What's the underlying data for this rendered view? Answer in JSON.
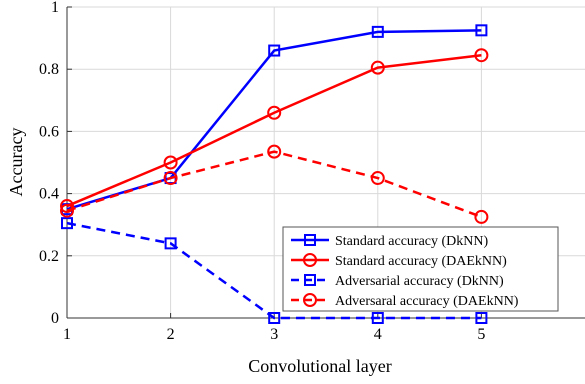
{
  "chart_data": {
    "type": "line",
    "xlabel": "Convolutional layer",
    "ylabel": "Accuracy",
    "x": [
      1,
      2,
      3,
      4,
      5
    ],
    "xlim": [
      1,
      6
    ],
    "ylim": [
      0,
      1
    ],
    "x_ticks": [
      "1",
      "2",
      "3",
      "4",
      "5"
    ],
    "y_ticks": [
      "0",
      "0.2",
      "0.4",
      "0.6",
      "0.8",
      "1"
    ],
    "grid": true,
    "legend_position": "bottom-right",
    "series": [
      {
        "name": "Standard accuracy (DkNN)",
        "values": [
          0.35,
          0.45,
          0.86,
          0.92,
          0.925
        ],
        "color": "#0000ff",
        "line": "solid",
        "marker": "square"
      },
      {
        "name": "Standard accuracy (DAEkNN)",
        "values": [
          0.36,
          0.5,
          0.66,
          0.805,
          0.845
        ],
        "color": "#ff0000",
        "line": "solid",
        "marker": "circle"
      },
      {
        "name": "Adversarial accuracy (DkNN)",
        "values": [
          0.305,
          0.24,
          0.0,
          0.0,
          0.0
        ],
        "color": "#0000ff",
        "line": "dashed",
        "marker": "square"
      },
      {
        "name": "Adversaral accuracy (DAEkNN)",
        "values": [
          0.345,
          0.45,
          0.535,
          0.45,
          0.325
        ],
        "color": "#ff0000",
        "line": "dashed",
        "marker": "circle"
      }
    ]
  }
}
